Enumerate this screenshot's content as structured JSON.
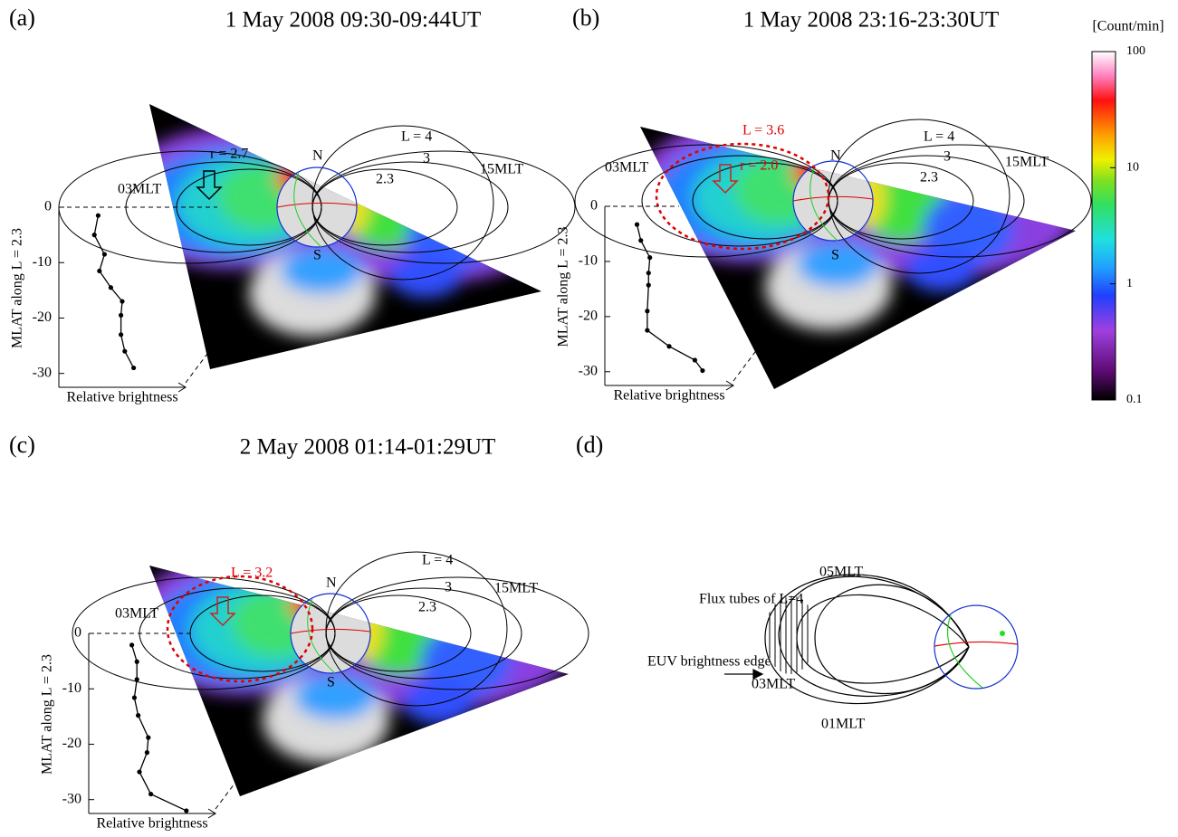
{
  "panels": [
    {
      "label": "(a)",
      "title": "1 May 2008 09:30-09:44UT",
      "annotations": [
        "r = 2.7",
        "N",
        "S",
        "L = 4",
        "3",
        "2.3",
        "15MLT",
        "03MLT"
      ]
    },
    {
      "label": "(b)",
      "title": "1 May 2008 23:16-23:30UT",
      "annotations": [
        "L = 3.6",
        "r = 2.0",
        "N",
        "S",
        "L = 4",
        "3",
        "2.3",
        "15MLT",
        "03MLT"
      ]
    },
    {
      "label": "(c)",
      "title": "2 May 2008 01:14-01:29UT",
      "annotations": [
        "L = 3.2",
        "N",
        "S",
        "L = 4",
        "3",
        "2.3",
        "15MLT",
        "03MLT"
      ]
    },
    {
      "label": "(d)",
      "annotations": [
        "05MLT",
        "Flux tubes of L=4",
        "EUV brightness edge",
        "03MLT",
        "01MLT"
      ]
    }
  ],
  "chart_data": [
    {
      "type": "line",
      "xlabel": "Relative brightness",
      "ylabel": "MLAT along L = 2.3",
      "xlim": [
        0,
        1
      ],
      "ylim": [
        -32.5,
        0
      ],
      "yticks": [
        0,
        -10,
        -20,
        -30
      ],
      "x": [
        0.31,
        0.28,
        0.36,
        0.32,
        0.41,
        0.5,
        0.49,
        0.49,
        0.52,
        0.59
      ],
      "series": [
        {
          "color": "#000000",
          "values": [
            -1.5,
            -5,
            -8.5,
            -11.5,
            -14.5,
            -17,
            -19.5,
            -23,
            -26,
            -29
          ]
        }
      ]
    },
    {
      "type": "line",
      "xlabel": "Relative brightness",
      "ylabel": "MLAT along L = 2.3",
      "xlim": [
        0,
        1
      ],
      "ylim": [
        -32.5,
        0
      ],
      "yticks": [
        0,
        -10,
        -20,
        -30
      ],
      "x": [
        0.25,
        0.28,
        0.35,
        0.34,
        0.34,
        0.33,
        0.33,
        0.5,
        0.7,
        0.76
      ],
      "series": [
        {
          "color": "#000000",
          "values": [
            -3.3,
            -6.2,
            -9.3,
            -12.1,
            -14.3,
            -19,
            -22.5,
            -25.4,
            -27.9,
            -29.8
          ]
        }
      ]
    },
    {
      "type": "line",
      "xlabel": "Relative brightness",
      "ylabel": "MLAT along L = 2.3",
      "xlim": [
        0,
        1
      ],
      "ylim": [
        -32.5,
        0
      ],
      "yticks": [
        0,
        -10,
        -20,
        -30
      ],
      "x": [
        0.34,
        0.38,
        0.38,
        0.36,
        0.39,
        0.47,
        0.46,
        0.4,
        0.49,
        0.77
      ],
      "series": [
        {
          "color": "#000000",
          "values": [
            -2.1,
            -5.1,
            -8.3,
            -11.6,
            -14.8,
            -18.8,
            -21.5,
            -25,
            -29,
            -32
          ]
        }
      ]
    }
  ],
  "colorbar": {
    "label": "[Count/min]",
    "lim": [
      0.1,
      100
    ],
    "log": true,
    "ticks": [
      0.1,
      1,
      10,
      100
    ]
  }
}
